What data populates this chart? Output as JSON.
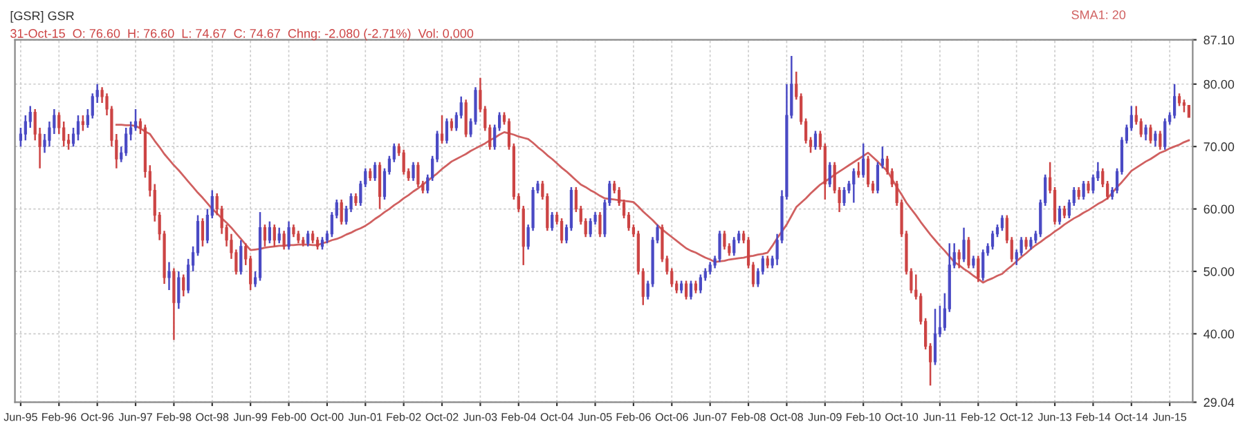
{
  "chart_data": {
    "type": "candlestick",
    "title": "[GSR] GSR",
    "subtitle": "31-Oct-15  O: 76.60  H: 76.60  L: 74.67  C: 74.67  Chng: -2.080 (-2.71%)  Vol: 0,000",
    "categories": [
      "Jun-95",
      null,
      null,
      null,
      null,
      null,
      null,
      null,
      "Feb-96",
      null,
      null,
      null,
      null,
      null,
      null,
      null,
      "Oct-96",
      null,
      null,
      null,
      null,
      null,
      null,
      null,
      "Jun-97",
      null,
      null,
      null,
      null,
      null,
      null,
      null,
      "Feb-98",
      null,
      null,
      null,
      null,
      null,
      null,
      null,
      "Oct-98",
      null,
      null,
      null,
      null,
      null,
      null,
      null,
      "Jun-99",
      null,
      null,
      null,
      null,
      null,
      null,
      null,
      "Feb-00",
      null,
      null,
      null,
      null,
      null,
      null,
      null,
      "Oct-00",
      null,
      null,
      null,
      null,
      null,
      null,
      null,
      "Jun-01",
      null,
      null,
      null,
      null,
      null,
      null,
      null,
      "Feb-02",
      null,
      null,
      null,
      null,
      null,
      null,
      null,
      "Oct-02",
      null,
      null,
      null,
      null,
      null,
      null,
      null,
      "Jun-03",
      null,
      null,
      null,
      null,
      null,
      null,
      null,
      "Feb-04",
      null,
      null,
      null,
      null,
      null,
      null,
      null,
      "Oct-04",
      null,
      null,
      null,
      null,
      null,
      null,
      null,
      "Jun-05",
      null,
      null,
      null,
      null,
      null,
      null,
      null,
      "Feb-06",
      null,
      null,
      null,
      null,
      null,
      null,
      null,
      "Oct-06",
      null,
      null,
      null,
      null,
      null,
      null,
      null,
      "Jun-07",
      null,
      null,
      null,
      null,
      null,
      null,
      null,
      "Feb-08",
      null,
      null,
      null,
      null,
      null,
      null,
      null,
      "Oct-08",
      null,
      null,
      null,
      null,
      null,
      null,
      null,
      "Jun-09",
      null,
      null,
      null,
      null,
      null,
      null,
      null,
      "Feb-10",
      null,
      null,
      null,
      null,
      null,
      null,
      null,
      "Oct-10",
      null,
      null,
      null,
      null,
      null,
      null,
      null,
      "Jun-11",
      null,
      null,
      null,
      null,
      null,
      null,
      null,
      "Feb-12",
      null,
      null,
      null,
      null,
      null,
      null,
      null,
      "Oct-12",
      null,
      null,
      null,
      null,
      null,
      null,
      null,
      "Jun-13",
      null,
      null,
      null,
      null,
      null,
      null,
      null,
      "Feb-14",
      null,
      null,
      null,
      null,
      null,
      null,
      null,
      "Oct-14",
      null,
      null,
      null,
      null,
      null,
      null,
      null,
      "Jun-15",
      null,
      null,
      null,
      null
    ],
    "ohlc": [
      [
        71,
        73,
        70,
        72
      ],
      [
        72,
        75,
        71,
        74
      ],
      [
        74,
        76.5,
        73,
        75.5
      ],
      [
        75.5,
        76,
        71,
        72
      ],
      [
        72,
        73,
        66.5,
        70
      ],
      [
        70,
        72,
        69,
        71
      ],
      [
        71,
        74,
        70,
        73
      ],
      [
        73,
        76,
        72,
        75
      ],
      [
        75,
        75.5,
        72,
        73
      ],
      [
        73,
        74,
        70,
        71
      ],
      [
        71,
        72,
        69.5,
        70.5
      ],
      [
        70.5,
        73,
        70,
        72
      ],
      [
        72,
        75,
        71,
        74
      ],
      [
        74,
        75,
        72.5,
        73.5
      ],
      [
        73.5,
        76,
        73,
        75
      ],
      [
        75,
        78.5,
        74.5,
        78
      ],
      [
        78,
        80,
        77,
        79
      ],
      [
        79,
        79.5,
        77,
        78
      ],
      [
        78,
        78.5,
        75,
        76
      ],
      [
        76,
        76.5,
        70,
        71
      ],
      [
        71,
        72,
        66.5,
        68
      ],
      [
        68,
        70,
        67.5,
        69
      ],
      [
        69,
        73,
        68.5,
        72
      ],
      [
        72,
        74,
        71,
        73
      ],
      [
        73,
        76,
        72.5,
        74
      ],
      [
        74,
        74.5,
        72,
        73
      ],
      [
        73,
        73.5,
        65,
        66
      ],
      [
        66,
        67,
        62,
        63
      ],
      [
        63,
        64,
        58,
        59
      ],
      [
        59,
        59.5,
        55,
        56
      ],
      [
        56,
        56.5,
        48,
        49
      ],
      [
        49,
        51.5,
        47,
        50
      ],
      [
        50,
        50.5,
        39,
        45
      ],
      [
        45,
        50,
        44,
        49
      ],
      [
        49,
        49.5,
        46,
        47
      ],
      [
        47,
        52,
        46.5,
        51
      ],
      [
        51,
        54,
        50,
        53
      ],
      [
        53,
        59,
        52.5,
        58
      ],
      [
        58,
        58.5,
        54,
        55
      ],
      [
        55,
        60,
        54.5,
        59
      ],
      [
        59,
        63,
        58.5,
        62
      ],
      [
        62,
        62.5,
        59,
        60
      ],
      [
        60,
        60.5,
        56,
        57
      ],
      [
        57,
        57.5,
        54,
        55
      ],
      [
        55,
        56,
        52,
        53
      ],
      [
        53,
        53.5,
        49.5,
        50
      ],
      [
        50,
        55,
        49.5,
        54
      ],
      [
        54,
        54.5,
        51,
        52
      ],
      [
        52,
        52.5,
        47,
        48
      ],
      [
        48,
        50,
        47.5,
        49
      ],
      [
        49,
        59.5,
        48.5,
        57
      ],
      [
        57,
        57.5,
        54,
        55
      ],
      [
        55,
        58,
        54.5,
        57
      ],
      [
        57,
        57.5,
        54,
        55
      ],
      [
        55,
        57,
        54.5,
        56
      ],
      [
        56,
        56.5,
        53.5,
        54
      ],
      [
        54,
        58,
        53.5,
        57
      ],
      [
        57,
        57.5,
        55.5,
        56
      ],
      [
        56,
        56.5,
        54.5,
        55
      ],
      [
        55,
        55.5,
        54,
        54.5
      ],
      [
        54.5,
        56.5,
        54,
        56
      ],
      [
        56,
        56.5,
        54.5,
        55
      ],
      [
        55,
        55.5,
        53.5,
        54
      ],
      [
        54,
        55.5,
        53.5,
        55
      ],
      [
        55,
        56.5,
        54.5,
        56
      ],
      [
        56,
        59.5,
        55.5,
        59
      ],
      [
        59,
        61.5,
        58.5,
        61
      ],
      [
        61,
        61.5,
        57.5,
        58
      ],
      [
        58,
        60.5,
        57.5,
        60
      ],
      [
        60,
        62.5,
        59.5,
        62
      ],
      [
        62,
        62.5,
        60.5,
        61
      ],
      [
        61,
        64.5,
        60.5,
        64
      ],
      [
        64,
        66.5,
        63.5,
        66
      ],
      [
        66,
        66.5,
        64.5,
        65
      ],
      [
        65,
        67.5,
        64.5,
        67
      ],
      [
        67,
        67.5,
        60,
        62
      ],
      [
        62,
        66.5,
        61.5,
        66
      ],
      [
        66,
        68.5,
        65.5,
        68
      ],
      [
        68,
        70.5,
        67.5,
        70
      ],
      [
        70,
        70.5,
        68.5,
        69
      ],
      [
        69,
        69.5,
        65.5,
        66
      ],
      [
        66,
        66.5,
        64.5,
        65
      ],
      [
        65,
        67.5,
        64.5,
        67
      ],
      [
        67,
        67.5,
        63.5,
        64
      ],
      [
        64,
        64.5,
        62.5,
        63
      ],
      [
        63,
        65.5,
        62.5,
        65
      ],
      [
        65,
        68.5,
        64.5,
        68
      ],
      [
        68,
        72.5,
        67.5,
        72
      ],
      [
        72,
        75,
        70.5,
        71
      ],
      [
        71,
        74.5,
        70.5,
        74
      ],
      [
        74,
        74.5,
        72.5,
        73
      ],
      [
        73,
        75.5,
        72.5,
        75
      ],
      [
        75,
        78,
        74.5,
        77
      ],
      [
        77,
        77.5,
        71.5,
        72
      ],
      [
        72,
        74.5,
        71.5,
        74
      ],
      [
        74,
        79.5,
        73.5,
        79
      ],
      [
        79,
        81,
        75.5,
        76
      ],
      [
        76,
        76.5,
        72.5,
        73
      ],
      [
        73,
        73.5,
        69.5,
        70
      ],
      [
        70,
        73.5,
        69.5,
        73
      ],
      [
        73,
        75.5,
        72.5,
        75
      ],
      [
        75,
        75.5,
        73.5,
        74
      ],
      [
        74,
        74.5,
        69.5,
        70
      ],
      [
        70,
        70.5,
        61.5,
        62
      ],
      [
        62,
        62.5,
        59.5,
        60
      ],
      [
        60,
        60.5,
        51,
        54
      ],
      [
        54,
        57.5,
        53.5,
        57
      ],
      [
        57,
        63.5,
        56.5,
        63
      ],
      [
        63,
        64.5,
        62.5,
        64
      ],
      [
        64,
        64.5,
        61.5,
        62
      ],
      [
        62,
        62.5,
        56.5,
        57
      ],
      [
        57,
        59.5,
        56.5,
        59
      ],
      [
        59,
        59.5,
        57.5,
        58
      ],
      [
        58,
        58.5,
        54.5,
        55
      ],
      [
        55,
        57.5,
        54.5,
        57
      ],
      [
        57,
        63.5,
        56.5,
        63
      ],
      [
        63,
        63.5,
        59.5,
        60
      ],
      [
        60,
        60.5,
        57.5,
        58
      ],
      [
        58,
        58.5,
        55.5,
        56
      ],
      [
        56,
        58.5,
        55.5,
        58
      ],
      [
        58,
        59.5,
        57.5,
        59
      ],
      [
        59,
        59.5,
        55.5,
        56
      ],
      [
        56,
        61.5,
        55.5,
        61
      ],
      [
        61,
        64.5,
        60.5,
        64
      ],
      [
        64,
        64.5,
        62.5,
        63
      ],
      [
        63,
        63.5,
        60.5,
        61
      ],
      [
        61,
        61.5,
        58.5,
        59
      ],
      [
        59,
        59.5,
        56.5,
        57
      ],
      [
        57,
        57.5,
        55.5,
        56
      ],
      [
        56,
        56.5,
        49.5,
        50
      ],
      [
        50,
        50.5,
        44.6,
        46
      ],
      [
        46,
        48.5,
        45.5,
        48
      ],
      [
        48,
        55.5,
        47.5,
        55
      ],
      [
        55,
        57.5,
        54.5,
        57
      ],
      [
        57,
        57.5,
        51.5,
        52
      ],
      [
        52,
        52.5,
        49.5,
        50
      ],
      [
        50,
        50.5,
        47.5,
        48
      ],
      [
        48,
        48.5,
        46.5,
        47
      ],
      [
        47,
        48.5,
        46.5,
        48
      ],
      [
        48,
        48.5,
        45.5,
        46
      ],
      [
        46,
        48.5,
        45.5,
        48
      ],
      [
        48,
        48.5,
        46.5,
        47
      ],
      [
        47,
        49.5,
        46.5,
        49
      ],
      [
        49,
        50.5,
        48.5,
        50
      ],
      [
        50,
        51.5,
        49.5,
        51
      ],
      [
        51,
        52.5,
        50.5,
        52
      ],
      [
        52,
        56.5,
        51.5,
        56
      ],
      [
        56,
        56.5,
        53.5,
        54
      ],
      [
        54,
        54.5,
        52.5,
        53
      ],
      [
        53,
        55.5,
        52.5,
        55
      ],
      [
        55,
        56.5,
        54.5,
        56
      ],
      [
        56,
        56.5,
        54.5,
        55
      ],
      [
        55,
        55.5,
        50.5,
        51
      ],
      [
        51,
        51.5,
        47.5,
        48
      ],
      [
        48,
        50.5,
        47.5,
        50
      ],
      [
        50,
        52.5,
        49.5,
        52
      ],
      [
        52,
        52.5,
        50.5,
        51
      ],
      [
        51,
        52.5,
        50.5,
        52
      ],
      [
        52,
        56,
        51,
        55
      ],
      [
        55,
        63,
        54.5,
        62
      ],
      [
        62,
        80,
        61.5,
        75
      ],
      [
        75,
        84.5,
        74.5,
        80
      ],
      [
        80,
        82,
        77.5,
        78
      ],
      [
        78,
        78.5,
        73.5,
        74
      ],
      [
        74,
        74.5,
        70.5,
        71
      ],
      [
        71,
        71.5,
        69,
        70
      ],
      [
        70,
        72.5,
        69.5,
        72
      ],
      [
        72,
        72.5,
        69.5,
        70
      ],
      [
        70,
        70.5,
        61.5,
        64
      ],
      [
        64,
        67.5,
        63.5,
        67
      ],
      [
        67,
        67.5,
        62.5,
        63
      ],
      [
        63,
        63.5,
        59.5,
        61
      ],
      [
        61,
        63.5,
        60.5,
        63
      ],
      [
        63,
        64.5,
        62.5,
        64
      ],
      [
        64,
        66.5,
        61,
        66
      ],
      [
        66,
        67.5,
        65,
        65.5
      ],
      [
        65.5,
        70.5,
        65,
        68
      ],
      [
        68,
        68.5,
        63.5,
        64
      ],
      [
        64,
        64.5,
        62.5,
        63
      ],
      [
        63,
        67.5,
        62.5,
        67
      ],
      [
        67,
        70,
        66.5,
        68
      ],
      [
        68,
        68.5,
        65.5,
        66
      ],
      [
        66,
        66.5,
        63.5,
        64
      ],
      [
        64,
        64.5,
        60.5,
        61
      ],
      [
        61,
        61.5,
        55.5,
        56
      ],
      [
        56,
        56.5,
        49.5,
        50
      ],
      [
        50,
        50.5,
        46.5,
        47
      ],
      [
        47,
        49.5,
        45.5,
        46
      ],
      [
        46,
        46.5,
        41.5,
        42
      ],
      [
        42,
        42.5,
        37.5,
        38
      ],
      [
        38,
        38.5,
        31.7,
        35.5
      ],
      [
        35.5,
        44,
        35,
        40
      ],
      [
        40,
        44.5,
        39.5,
        41
      ],
      [
        41,
        46.5,
        40.5,
        44
      ],
      [
        44,
        54.5,
        43.5,
        51
      ],
      [
        51,
        54.5,
        50.5,
        53
      ],
      [
        53,
        53.5,
        50.5,
        52
      ],
      [
        52,
        57,
        51.5,
        55
      ],
      [
        55,
        55.5,
        50.5,
        51
      ],
      [
        51,
        52.5,
        50.5,
        52
      ],
      [
        52,
        52.5,
        48.3,
        49
      ],
      [
        49,
        53.5,
        48.5,
        53
      ],
      [
        53,
        54.5,
        52.5,
        54
      ],
      [
        54,
        56.5,
        53.5,
        56
      ],
      [
        56,
        57.5,
        55.5,
        57
      ],
      [
        57,
        59,
        56.5,
        58.5
      ],
      [
        58.5,
        59,
        54.5,
        55
      ],
      [
        55,
        55.5,
        51.5,
        52
      ],
      [
        52,
        53.5,
        51,
        53
      ],
      [
        53,
        55.5,
        52.5,
        55
      ],
      [
        55,
        55.5,
        53.5,
        54
      ],
      [
        54,
        55.5,
        53.5,
        55
      ],
      [
        55,
        56.5,
        54.5,
        56
      ],
      [
        56,
        61.5,
        55.5,
        61
      ],
      [
        61,
        65.5,
        60.5,
        65
      ],
      [
        65,
        67.5,
        62.5,
        63
      ],
      [
        63,
        63.5,
        57.5,
        58
      ],
      [
        58,
        60.5,
        57.5,
        60
      ],
      [
        60,
        60.5,
        58.5,
        59
      ],
      [
        59,
        61.5,
        58.5,
        61
      ],
      [
        61,
        63.5,
        60.5,
        63
      ],
      [
        63,
        63.5,
        61.5,
        62
      ],
      [
        62,
        64.5,
        61.5,
        64
      ],
      [
        64,
        64.5,
        62.5,
        63
      ],
      [
        63,
        65.5,
        62.5,
        65
      ],
      [
        65,
        67.5,
        64.5,
        66
      ],
      [
        66,
        66.5,
        63.5,
        64
      ],
      [
        64,
        64.5,
        61.5,
        62
      ],
      [
        62,
        63.5,
        61.5,
        63
      ],
      [
        63,
        66.5,
        62.5,
        66
      ],
      [
        66,
        71.5,
        65.5,
        71
      ],
      [
        71,
        73.5,
        70.5,
        73
      ],
      [
        73,
        76.5,
        72.5,
        75
      ],
      [
        75,
        76.5,
        73.5,
        74
      ],
      [
        74,
        74.5,
        71.5,
        72
      ],
      [
        72,
        73.5,
        71,
        73
      ],
      [
        73,
        73.5,
        70.5,
        71
      ],
      [
        71,
        72.5,
        70,
        72
      ],
      [
        72,
        72.5,
        69.5,
        70
      ],
      [
        70,
        74.5,
        69.5,
        74
      ],
      [
        74,
        75.5,
        73.5,
        75
      ],
      [
        75,
        80,
        74.5,
        78
      ],
      [
        78,
        78.5,
        76.5,
        77
      ],
      [
        77,
        77.5,
        75.5,
        76.6
      ],
      [
        76.6,
        76.6,
        74.67,
        74.67
      ]
    ],
    "colors": [
      "#4a4ac4",
      "#4a4ac4",
      "#4a4ac4",
      "#cc4444",
      "#cc4444",
      "#4a4ac4",
      "#4a4ac4",
      "#4a4ac4",
      "#cc4444",
      "#cc4444",
      "#cc4444",
      "#4a4ac4",
      "#4a4ac4",
      "#cc4444",
      "#4a4ac4",
      "#4a4ac4",
      "#4a4ac4",
      "#cc4444",
      "#cc4444",
      "#cc4444",
      "#cc4444",
      "#4a4ac4",
      "#4a4ac4",
      "#4a4ac4",
      "#4a4ac4",
      "#cc4444",
      "#cc4444",
      "#cc4444",
      "#cc4444",
      "#cc4444",
      "#cc4444",
      "#4a4ac4",
      "#cc4444",
      "#4a4ac4",
      "#cc4444",
      "#4a4ac4",
      "#4a4ac4",
      "#4a4ac4",
      "#cc4444",
      "#4a4ac4",
      "#4a4ac4",
      "#cc4444",
      "#cc4444",
      "#cc4444",
      "#cc4444",
      "#cc4444",
      "#4a4ac4",
      "#cc4444",
      "#cc4444",
      "#4a4ac4",
      "#4a4ac4",
      "#cc4444",
      "#4a4ac4",
      "#cc4444",
      "#4a4ac4",
      "#cc4444",
      "#4a4ac4",
      "#cc4444",
      "#cc4444",
      "#cc4444",
      "#4a4ac4",
      "#cc4444",
      "#cc4444",
      "#4a4ac4",
      "#4a4ac4",
      "#4a4ac4",
      "#4a4ac4",
      "#cc4444",
      "#4a4ac4",
      "#4a4ac4",
      "#cc4444",
      "#4a4ac4",
      "#4a4ac4",
      "#cc4444",
      "#4a4ac4",
      "#cc4444",
      "#4a4ac4",
      "#4a4ac4",
      "#4a4ac4",
      "#cc4444",
      "#cc4444",
      "#cc4444",
      "#4a4ac4",
      "#cc4444",
      "#cc4444",
      "#4a4ac4",
      "#4a4ac4",
      "#4a4ac4",
      "#cc4444",
      "#4a4ac4",
      "#cc4444",
      "#4a4ac4",
      "#4a4ac4",
      "#cc4444",
      "#4a4ac4",
      "#4a4ac4",
      "#cc4444",
      "#cc4444",
      "#cc4444",
      "#4a4ac4",
      "#4a4ac4",
      "#cc4444",
      "#cc4444",
      "#cc4444",
      "#cc4444",
      "#cc4444",
      "#4a4ac4",
      "#4a4ac4",
      "#4a4ac4",
      "#cc4444",
      "#cc4444",
      "#4a4ac4",
      "#cc4444",
      "#cc4444",
      "#4a4ac4",
      "#4a4ac4",
      "#cc4444",
      "#cc4444",
      "#cc4444",
      "#4a4ac4",
      "#4a4ac4",
      "#cc4444",
      "#4a4ac4",
      "#4a4ac4",
      "#cc4444",
      "#cc4444",
      "#cc4444",
      "#cc4444",
      "#cc4444",
      "#cc4444",
      "#cc4444",
      "#4a4ac4",
      "#4a4ac4",
      "#4a4ac4",
      "#cc4444",
      "#cc4444",
      "#cc4444",
      "#cc4444",
      "#4a4ac4",
      "#cc4444",
      "#4a4ac4",
      "#cc4444",
      "#4a4ac4",
      "#4a4ac4",
      "#4a4ac4",
      "#4a4ac4",
      "#4a4ac4",
      "#cc4444",
      "#cc4444",
      "#4a4ac4",
      "#4a4ac4",
      "#cc4444",
      "#cc4444",
      "#cc4444",
      "#4a4ac4",
      "#4a4ac4",
      "#cc4444",
      "#4a4ac4",
      "#4a4ac4",
      "#4a4ac4",
      "#4a4ac4",
      "#4a4ac4",
      "#cc4444",
      "#cc4444",
      "#cc4444",
      "#cc4444",
      "#4a4ac4",
      "#cc4444",
      "#cc4444",
      "#4a4ac4",
      "#cc4444",
      "#cc4444",
      "#4a4ac4",
      "#4a4ac4",
      "#4a4ac4",
      "#cc4444",
      "#4a4ac4",
      "#cc4444",
      "#cc4444",
      "#4a4ac4",
      "#4a4ac4",
      "#cc4444",
      "#cc4444",
      "#cc4444",
      "#cc4444",
      "#cc4444",
      "#cc4444",
      "#cc4444",
      "#cc4444",
      "#cc4444",
      "#cc4444",
      "#4a4ac4",
      "#4a4ac4",
      "#4a4ac4",
      "#4a4ac4",
      "#4a4ac4",
      "#cc4444",
      "#4a4ac4",
      "#cc4444",
      "#4a4ac4",
      "#cc4444",
      "#4a4ac4",
      "#4a4ac4",
      "#4a4ac4",
      "#4a4ac4",
      "#4a4ac4",
      "#cc4444",
      "#cc4444",
      "#4a4ac4",
      "#4a4ac4",
      "#cc4444",
      "#4a4ac4",
      "#4a4ac4",
      "#4a4ac4",
      "#4a4ac4",
      "#cc4444",
      "#cc4444",
      "#4a4ac4",
      "#cc4444",
      "#4a4ac4",
      "#4a4ac4",
      "#cc4444",
      "#4a4ac4",
      "#cc4444",
      "#4a4ac4",
      "#4a4ac4",
      "#cc4444",
      "#cc4444",
      "#4a4ac4",
      "#4a4ac4",
      "#4a4ac4",
      "#4a4ac4",
      "#4a4ac4",
      "#cc4444",
      "#cc4444",
      "#4a4ac4",
      "#cc4444",
      "#4a4ac4",
      "#cc4444",
      "#4a4ac4",
      "#4a4ac4",
      "#4a4ac4",
      "#cc4444",
      "#cc4444",
      "#cc4444"
    ],
    "series": [
      {
        "type": "line",
        "name": "SMA1: 20",
        "color": "#d06060",
        "values": [
          null,
          null,
          null,
          null,
          null,
          null,
          null,
          null,
          null,
          null,
          null,
          null,
          null,
          null,
          null,
          null,
          null,
          null,
          null,
          null,
          73.5,
          73.5,
          73.4,
          73.4,
          73.3,
          72.9,
          72.4,
          72.0,
          70.9,
          69.9,
          68.8,
          67.9,
          67.0,
          66.2,
          65.3,
          64.4,
          63.5,
          62.6,
          61.8,
          60.9,
          60.0,
          59.3,
          58.5,
          57.8,
          57.0,
          56.1,
          55.2,
          54.3,
          53.4,
          53.5,
          53.6,
          53.8,
          53.9,
          54.0,
          54.1,
          54.1,
          54.2,
          54.2,
          54.3,
          54.3,
          54.3,
          54.2,
          54.2,
          54.5,
          54.7,
          55.0,
          55.2,
          55.5,
          55.9,
          56.2,
          56.6,
          56.9,
          57.3,
          57.8,
          58.4,
          58.9,
          59.5,
          60.0,
          60.6,
          61.1,
          61.7,
          62.2,
          62.8,
          63.3,
          63.9,
          64.5,
          65.1,
          65.7,
          66.4,
          67.0,
          67.6,
          68.0,
          68.4,
          68.8,
          69.3,
          69.7,
          70.1,
          70.5,
          71.0,
          71.4,
          71.9,
          72.3,
          72.1,
          71.9,
          71.6,
          71.4,
          71.2,
          70.6,
          69.9,
          69.3,
          68.6,
          68.0,
          67.3,
          66.6,
          66.0,
          65.3,
          64.6,
          63.9,
          63.5,
          63.0,
          62.6,
          62.1,
          61.7,
          61.6,
          61.5,
          61.4,
          61.3,
          61.2,
          61.1,
          60.4,
          59.6,
          58.9,
          58.2,
          57.4,
          56.7,
          56.1,
          55.5,
          54.9,
          54.3,
          53.7,
          53.3,
          53.0,
          52.6,
          52.2,
          51.9,
          51.5,
          51.6,
          51.7,
          51.9,
          52.0,
          52.1,
          52.2,
          52.4,
          52.5,
          52.7,
          52.8,
          53.0,
          54.1,
          55.3,
          56.4,
          57.5,
          58.9,
          60.3,
          61.0,
          61.7,
          62.5,
          63.2,
          63.9,
          64.4,
          64.9,
          65.5,
          66.0,
          66.5,
          67.0,
          67.5,
          68.0,
          68.5,
          69.0,
          68.3,
          67.6,
          66.8,
          66.1,
          64.8,
          63.5,
          62.3,
          61.0,
          60.0,
          59.0,
          57.9,
          56.9,
          55.9,
          55.0,
          54.1,
          53.3,
          52.4,
          51.5,
          51.0,
          50.4,
          49.9,
          49.3,
          48.8,
          48.2,
          48.6,
          48.9,
          49.3,
          49.6,
          50.3,
          50.9,
          51.6,
          52.3,
          52.9,
          53.6,
          54.2,
          54.7,
          55.3,
          55.8,
          56.4,
          56.9,
          57.5,
          58.0,
          58.5,
          58.9,
          59.4,
          59.8,
          60.3,
          60.8,
          61.2,
          61.7,
          62.6,
          63.5,
          64.3,
          65.2,
          66.1,
          66.6,
          67.1,
          67.6,
          68.0,
          68.5,
          69.0,
          69.3,
          69.7,
          70.0,
          70.3,
          70.7,
          71.0
        ]
      }
    ],
    "ylim": [
      29.04,
      87.1
    ],
    "yticks": [
      {
        "value": 29.04,
        "label": "29.04"
      },
      {
        "value": 40,
        "label": "40.00"
      },
      {
        "value": 50,
        "label": "50.00"
      },
      {
        "value": 60,
        "label": "60.00"
      },
      {
        "value": 70,
        "label": "70.00"
      },
      {
        "value": 80,
        "label": "80.00"
      },
      {
        "value": 87.1,
        "label": "87.10"
      }
    ],
    "grid": true
  }
}
